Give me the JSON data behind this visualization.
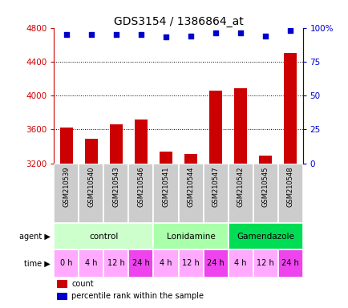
{
  "title": "GDS3154 / 1386864_at",
  "samples": [
    "GSM210539",
    "GSM210540",
    "GSM210543",
    "GSM210546",
    "GSM210541",
    "GSM210544",
    "GSM210547",
    "GSM210542",
    "GSM210545",
    "GSM210548"
  ],
  "counts": [
    3620,
    3490,
    3660,
    3720,
    3340,
    3310,
    4060,
    4090,
    3290,
    4500
  ],
  "percentiles": [
    95,
    95,
    95,
    95,
    93,
    94,
    96,
    96,
    94,
    98
  ],
  "ylim_left": [
    3200,
    4800
  ],
  "ylim_right": [
    0,
    100
  ],
  "yticks_left": [
    3200,
    3600,
    4000,
    4400,
    4800
  ],
  "yticks_right": [
    0,
    25,
    50,
    75,
    100
  ],
  "bar_color": "#cc0000",
  "dot_color": "#0000cc",
  "agent_groups": [
    {
      "label": "control",
      "start": 0,
      "end": 4,
      "color": "#ccffcc"
    },
    {
      "label": "Lonidamine",
      "start": 4,
      "end": 7,
      "color": "#aaffaa"
    },
    {
      "label": "Gamendazole",
      "start": 7,
      "end": 10,
      "color": "#00dd55"
    }
  ],
  "time_labels": [
    "0 h",
    "4 h",
    "12 h",
    "24 h",
    "4 h",
    "12 h",
    "24 h",
    "4 h",
    "12 h",
    "24 h"
  ],
  "time_colors": [
    "#ffaaff",
    "#ffaaff",
    "#ffaaff",
    "#ee44ee",
    "#ffaaff",
    "#ffaaff",
    "#ee44ee",
    "#ffaaff",
    "#ffaaff",
    "#ee44ee"
  ],
  "sample_bg_color": "#cccccc",
  "background_color": "#ffffff",
  "grid_lines": [
    3600,
    4000,
    4400
  ],
  "legend_items": [
    {
      "color": "#cc0000",
      "label": "count"
    },
    {
      "color": "#0000cc",
      "label": "percentile rank within the sample"
    }
  ]
}
